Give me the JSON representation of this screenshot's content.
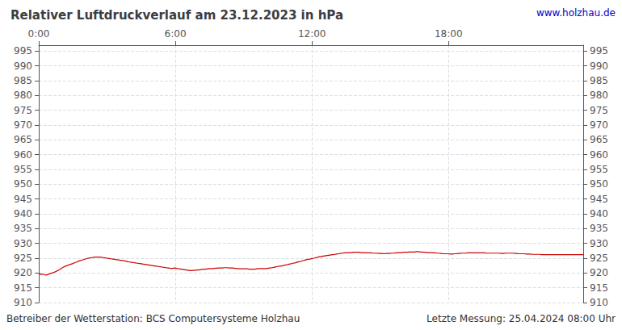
{
  "chart_data": {
    "type": "line",
    "title": "Relativer Luftdruckverlauf am 23.12.2023 in hPa",
    "annotations": [
      {
        "text": "www.holzhau.de",
        "color": "#0000cc"
      },
      {
        "text": "Betreiber der Wetterstation: BCS Computersysteme Holzhau"
      },
      {
        "text": "Letzte Messung: 25.04.2024 08:00 Uhr"
      }
    ],
    "color": "#cc0000",
    "grid": true,
    "ylim": [
      910,
      997
    ],
    "yticks": [
      910,
      915,
      920,
      925,
      930,
      935,
      940,
      945,
      950,
      955,
      960,
      965,
      970,
      975,
      980,
      985,
      990,
      995
    ],
    "categories": [
      "0:00",
      null,
      null,
      null,
      null,
      null,
      null,
      null,
      null,
      null,
      null,
      null,
      null,
      null,
      null,
      null,
      null,
      null,
      null,
      null,
      null,
      null,
      null,
      null,
      null,
      null,
      null,
      null,
      null,
      null,
      null,
      null,
      null,
      null,
      null,
      null,
      null,
      null,
      null,
      null,
      null,
      null,
      null,
      null,
      null,
      null,
      null,
      null,
      null,
      null,
      null,
      null,
      null,
      null,
      null,
      null,
      null,
      null,
      null,
      null,
      null,
      null,
      null,
      null,
      null,
      null,
      null,
      null,
      null,
      null,
      null,
      null,
      "6:00",
      null,
      null,
      null,
      null,
      null,
      null,
      null,
      null,
      null,
      null,
      null,
      null,
      null,
      null,
      null,
      null,
      null,
      null,
      null,
      null,
      null,
      null,
      null,
      null,
      null,
      null,
      null,
      null,
      null,
      null,
      null,
      null,
      null,
      null,
      null,
      null,
      null,
      null,
      null,
      null,
      null,
      null,
      null,
      null,
      null,
      null,
      null,
      null,
      null,
      null,
      null,
      null,
      null,
      null,
      null,
      null,
      null,
      null,
      null,
      null,
      null,
      null,
      null,
      null,
      null,
      null,
      null,
      null,
      null,
      null,
      null,
      "12:00",
      null,
      null,
      null,
      null,
      null,
      null,
      null,
      null,
      null,
      null,
      null,
      null,
      null,
      null,
      null,
      null,
      null,
      null,
      null,
      null,
      null,
      null,
      null,
      null,
      null,
      null,
      null,
      null,
      null,
      null,
      null,
      null,
      null,
      null,
      null,
      null,
      null,
      null,
      null,
      null,
      null,
      null,
      null,
      null,
      null,
      null,
      null,
      null,
      null,
      null,
      null,
      null,
      null,
      null,
      null,
      null,
      null,
      null,
      null,
      null,
      null,
      null,
      null,
      null,
      null,
      null,
      null,
      null,
      null,
      null,
      null,
      "18:00",
      null,
      null,
      null,
      null,
      null,
      null,
      null,
      null,
      null,
      null,
      null,
      null,
      null,
      null,
      null,
      null,
      null,
      null,
      null,
      null,
      null,
      null,
      null,
      null,
      null,
      null,
      null,
      null,
      null,
      null,
      null,
      null,
      null,
      null,
      null,
      null,
      null,
      null,
      null,
      null,
      null,
      null,
      null,
      null,
      null,
      null,
      null,
      null,
      null,
      null,
      null,
      null,
      null,
      null,
      null,
      null,
      null,
      null,
      null,
      null,
      null,
      null,
      null,
      null,
      null,
      null,
      null,
      null,
      null,
      null,
      null
    ],
    "values": [
      919.8,
      919.5,
      919.6,
      919.4,
      919.3,
      919.5,
      919.8,
      920.0,
      920.2,
      920.5,
      920.8,
      921.2,
      921.6,
      922.0,
      922.3,
      922.5,
      922.8,
      923.0,
      923.2,
      923.5,
      923.7,
      924.0,
      924.2,
      924.4,
      924.6,
      924.8,
      925.0,
      925.1,
      925.2,
      925.3,
      925.4,
      925.4,
      925.4,
      925.3,
      925.2,
      925.1,
      925.0,
      924.9,
      924.8,
      924.7,
      924.6,
      924.5,
      924.4,
      924.3,
      924.2,
      924.1,
      924.0,
      923.8,
      923.7,
      923.6,
      923.5,
      923.4,
      923.3,
      923.2,
      923.1,
      923.0,
      922.9,
      922.8,
      922.7,
      922.6,
      922.5,
      922.4,
      922.3,
      922.2,
      922.1,
      922.0,
      921.9,
      921.8,
      921.7,
      921.6,
      921.5,
      921.6,
      921.7,
      921.5,
      921.4,
      921.3,
      921.2,
      921.1,
      921.0,
      920.9,
      920.8,
      920.9,
      920.9,
      921.0,
      921.0,
      921.1,
      921.2,
      921.3,
      921.3,
      921.4,
      921.5,
      921.5,
      921.5,
      921.6,
      921.6,
      921.7,
      921.7,
      921.7,
      921.8,
      921.8,
      921.7,
      921.7,
      921.7,
      921.6,
      921.5,
      921.5,
      921.4,
      921.4,
      921.4,
      921.4,
      921.4,
      921.3,
      921.3,
      921.3,
      921.3,
      921.4,
      921.5,
      921.5,
      921.5,
      921.5,
      921.5,
      921.6,
      921.7,
      921.8,
      921.9,
      922.1,
      922.2,
      922.3,
      922.4,
      922.5,
      922.7,
      922.8,
      923.0,
      923.1,
      923.3,
      923.4,
      923.6,
      923.8,
      923.9,
      924.1,
      924.3,
      924.5,
      924.6,
      924.7,
      924.9,
      925.0,
      925.2,
      925.3,
      925.5,
      925.6,
      925.7,
      925.8,
      925.9,
      926.0,
      926.1,
      926.2,
      926.3,
      926.4,
      926.5,
      926.6,
      926.7,
      926.8,
      926.8,
      926.9,
      926.9,
      926.9,
      927.0,
      927.0,
      927.0,
      927.0,
      926.9,
      926.9,
      926.9,
      926.8,
      926.8,
      926.8,
      926.7,
      926.7,
      926.7,
      926.6,
      926.6,
      926.6,
      926.5,
      926.6,
      926.6,
      926.6,
      926.7,
      926.7,
      926.8,
      926.8,
      926.9,
      926.9,
      927.0,
      927.0,
      927.0,
      927.1,
      927.1,
      927.1,
      927.1,
      927.2,
      927.2,
      927.1,
      927.1,
      927.0,
      927.0,
      926.9,
      926.9,
      926.9,
      926.8,
      926.8,
      926.7,
      926.7,
      926.6,
      926.5,
      926.5,
      926.5,
      926.5,
      926.4,
      926.4,
      926.5,
      926.5,
      926.6,
      926.6,
      926.7,
      926.7,
      926.7,
      926.8,
      926.8,
      926.8,
      926.8,
      926.8,
      926.8,
      926.8,
      926.8,
      926.8,
      926.8,
      926.7,
      926.7,
      926.7,
      926.7,
      926.7,
      926.7,
      926.7,
      926.7,
      926.6,
      926.6,
      926.7,
      926.7,
      926.7,
      926.7,
      926.7,
      926.6,
      926.6,
      926.5,
      926.5,
      926.5,
      926.5,
      926.4,
      926.4,
      926.4,
      926.3,
      926.3,
      926.3,
      926.3,
      926.3,
      926.2,
      926.2,
      926.2,
      926.2,
      926.2,
      926.2,
      926.2,
      926.2,
      926.2,
      926.2,
      926.2,
      926.2,
      926.2,
      926.2,
      926.2,
      926.2,
      926.2,
      926.2,
      926.2,
      926.2,
      926.2,
      926.2,
      926.2
    ]
  }
}
